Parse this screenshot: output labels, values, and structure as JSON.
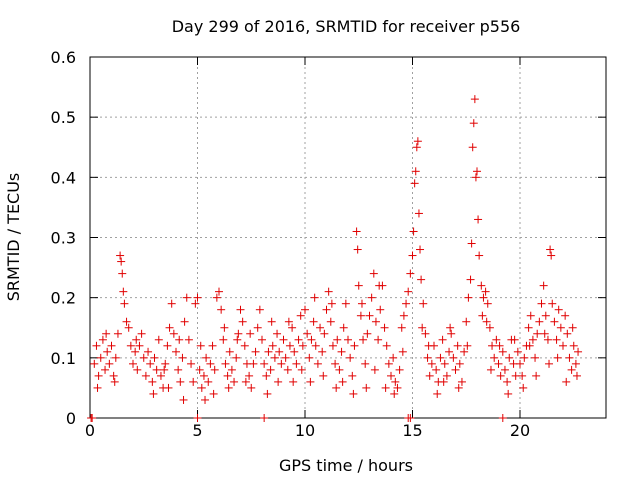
{
  "chart_data": {
    "type": "scatter",
    "title": "Day 299 of 2016, SRMTID for receiver p556",
    "xlabel": "GPS time / hours",
    "ylabel": "SRMTID / TECUs",
    "xlim": [
      0,
      24
    ],
    "ylim": [
      0,
      0.6
    ],
    "xticks": [
      {
        "value": 0,
        "label": "0"
      },
      {
        "value": 5,
        "label": "5"
      },
      {
        "value": 10,
        "label": "10"
      },
      {
        "value": 15,
        "label": "15"
      },
      {
        "value": 20,
        "label": "20"
      }
    ],
    "yticks": [
      {
        "value": 0,
        "label": "0"
      },
      {
        "value": 0.1,
        "label": "0.1"
      },
      {
        "value": 0.2,
        "label": "0.2"
      },
      {
        "value": 0.3,
        "label": "0.3"
      },
      {
        "value": 0.4,
        "label": "0.4"
      },
      {
        "value": 0.5,
        "label": "0.5"
      },
      {
        "value": 0.6,
        "label": "0.6"
      }
    ],
    "grid": true,
    "marker": "+",
    "series": [
      {
        "name": "SRMTID",
        "color": "#e00000",
        "points": [
          [
            0.05,
            0.0
          ],
          [
            0.1,
            0.0
          ],
          [
            5.0,
            0.0
          ],
          [
            8.1,
            0.0
          ],
          [
            14.8,
            0.0
          ],
          [
            14.9,
            0.0
          ],
          [
            19.2,
            0.0
          ],
          [
            0.2,
            0.09
          ],
          [
            0.3,
            0.12
          ],
          [
            0.4,
            0.07
          ],
          [
            0.5,
            0.1
          ],
          [
            0.6,
            0.13
          ],
          [
            0.7,
            0.08
          ],
          [
            0.8,
            0.11
          ],
          [
            0.9,
            0.09
          ],
          [
            1.0,
            0.12
          ],
          [
            1.1,
            0.07
          ],
          [
            1.2,
            0.1
          ],
          [
            1.3,
            0.14
          ],
          [
            1.4,
            0.27
          ],
          [
            1.45,
            0.26
          ],
          [
            1.5,
            0.24
          ],
          [
            1.55,
            0.21
          ],
          [
            1.6,
            0.19
          ],
          [
            1.7,
            0.16
          ],
          [
            1.8,
            0.15
          ],
          [
            1.9,
            0.12
          ],
          [
            2.0,
            0.09
          ],
          [
            2.1,
            0.11
          ],
          [
            2.2,
            0.08
          ],
          [
            2.3,
            0.12
          ],
          [
            2.4,
            0.14
          ],
          [
            2.5,
            0.1
          ],
          [
            2.6,
            0.07
          ],
          [
            2.7,
            0.11
          ],
          [
            2.8,
            0.09
          ],
          [
            2.9,
            0.06
          ],
          [
            3.0,
            0.1
          ],
          [
            3.1,
            0.08
          ],
          [
            3.2,
            0.13
          ],
          [
            3.3,
            0.07
          ],
          [
            3.4,
            0.05
          ],
          [
            3.5,
            0.09
          ],
          [
            3.6,
            0.12
          ],
          [
            3.7,
            0.15
          ],
          [
            3.8,
            0.19
          ],
          [
            3.9,
            0.14
          ],
          [
            4.0,
            0.11
          ],
          [
            4.1,
            0.08
          ],
          [
            4.2,
            0.06
          ],
          [
            4.3,
            0.1
          ],
          [
            4.4,
            0.16
          ],
          [
            4.5,
            0.2
          ],
          [
            4.6,
            0.13
          ],
          [
            4.7,
            0.09
          ],
          [
            4.8,
            0.06
          ],
          [
            4.9,
            0.19
          ],
          [
            5.0,
            0.2
          ],
          [
            5.1,
            0.08
          ],
          [
            5.2,
            0.05
          ],
          [
            5.3,
            0.07
          ],
          [
            5.4,
            0.1
          ],
          [
            5.5,
            0.06
          ],
          [
            5.6,
            0.09
          ],
          [
            5.7,
            0.12
          ],
          [
            5.8,
            0.08
          ],
          [
            5.9,
            0.2
          ],
          [
            6.0,
            0.21
          ],
          [
            6.1,
            0.18
          ],
          [
            6.2,
            0.13
          ],
          [
            6.3,
            0.09
          ],
          [
            6.4,
            0.07
          ],
          [
            6.5,
            0.11
          ],
          [
            6.6,
            0.08
          ],
          [
            6.7,
            0.06
          ],
          [
            6.8,
            0.1
          ],
          [
            6.9,
            0.14
          ],
          [
            7.0,
            0.18
          ],
          [
            7.1,
            0.16
          ],
          [
            7.2,
            0.12
          ],
          [
            7.3,
            0.09
          ],
          [
            7.4,
            0.07
          ],
          [
            7.5,
            0.05
          ],
          [
            7.6,
            0.09
          ],
          [
            7.7,
            0.11
          ],
          [
            7.8,
            0.15
          ],
          [
            7.9,
            0.18
          ],
          [
            8.0,
            0.13
          ],
          [
            8.1,
            0.09
          ],
          [
            8.2,
            0.07
          ],
          [
            8.3,
            0.11
          ],
          [
            8.4,
            0.08
          ],
          [
            8.5,
            0.12
          ],
          [
            8.6,
            0.1
          ],
          [
            8.7,
            0.14
          ],
          [
            8.8,
            0.11
          ],
          [
            8.9,
            0.09
          ],
          [
            9.0,
            0.13
          ],
          [
            9.1,
            0.1
          ],
          [
            9.2,
            0.08
          ],
          [
            9.3,
            0.12
          ],
          [
            9.4,
            0.15
          ],
          [
            9.5,
            0.11
          ],
          [
            9.6,
            0.09
          ],
          [
            9.7,
            0.13
          ],
          [
            9.8,
            0.17
          ],
          [
            9.9,
            0.12
          ],
          [
            10.0,
            0.18
          ],
          [
            10.1,
            0.14
          ],
          [
            10.2,
            0.1
          ],
          [
            10.3,
            0.13
          ],
          [
            10.4,
            0.16
          ],
          [
            10.5,
            0.12
          ],
          [
            10.6,
            0.09
          ],
          [
            10.7,
            0.15
          ],
          [
            10.8,
            0.11
          ],
          [
            10.9,
            0.14
          ],
          [
            11.0,
            0.18
          ],
          [
            11.1,
            0.21
          ],
          [
            11.2,
            0.16
          ],
          [
            11.3,
            0.12
          ],
          [
            11.4,
            0.09
          ],
          [
            11.5,
            0.13
          ],
          [
            11.6,
            0.08
          ],
          [
            11.7,
            0.11
          ],
          [
            11.8,
            0.15
          ],
          [
            11.9,
            0.19
          ],
          [
            12.0,
            0.13
          ],
          [
            12.1,
            0.1
          ],
          [
            12.2,
            0.07
          ],
          [
            12.3,
            0.12
          ],
          [
            12.4,
            0.31
          ],
          [
            12.45,
            0.28
          ],
          [
            12.5,
            0.22
          ],
          [
            12.6,
            0.17
          ],
          [
            12.7,
            0.13
          ],
          [
            12.8,
            0.09
          ],
          [
            12.9,
            0.14
          ],
          [
            13.0,
            0.17
          ],
          [
            13.1,
            0.2
          ],
          [
            13.2,
            0.24
          ],
          [
            13.3,
            0.16
          ],
          [
            13.4,
            0.13
          ],
          [
            13.5,
            0.18
          ],
          [
            13.6,
            0.22
          ],
          [
            13.7,
            0.15
          ],
          [
            13.8,
            0.12
          ],
          [
            13.9,
            0.09
          ],
          [
            14.0,
            0.07
          ],
          [
            14.1,
            0.1
          ],
          [
            14.2,
            0.06
          ],
          [
            14.3,
            0.05
          ],
          [
            14.4,
            0.08
          ],
          [
            14.5,
            0.15
          ],
          [
            14.6,
            0.17
          ],
          [
            14.7,
            0.19
          ],
          [
            14.8,
            0.21
          ],
          [
            14.9,
            0.24
          ],
          [
            15.0,
            0.27
          ],
          [
            15.05,
            0.31
          ],
          [
            15.1,
            0.39
          ],
          [
            15.15,
            0.41
          ],
          [
            15.2,
            0.45
          ],
          [
            15.25,
            0.46
          ],
          [
            15.3,
            0.34
          ],
          [
            15.35,
            0.28
          ],
          [
            15.4,
            0.23
          ],
          [
            15.5,
            0.19
          ],
          [
            15.6,
            0.14
          ],
          [
            15.7,
            0.1
          ],
          [
            15.8,
            0.07
          ],
          [
            15.9,
            0.09
          ],
          [
            16.0,
            0.12
          ],
          [
            16.1,
            0.08
          ],
          [
            16.2,
            0.06
          ],
          [
            16.3,
            0.1
          ],
          [
            16.4,
            0.13
          ],
          [
            16.5,
            0.09
          ],
          [
            16.6,
            0.07
          ],
          [
            16.7,
            0.11
          ],
          [
            16.8,
            0.14
          ],
          [
            16.9,
            0.1
          ],
          [
            17.0,
            0.08
          ],
          [
            17.1,
            0.12
          ],
          [
            17.2,
            0.09
          ],
          [
            17.3,
            0.06
          ],
          [
            17.4,
            0.11
          ],
          [
            17.5,
            0.16
          ],
          [
            17.6,
            0.2
          ],
          [
            17.7,
            0.23
          ],
          [
            17.75,
            0.29
          ],
          [
            17.8,
            0.45
          ],
          [
            17.85,
            0.49
          ],
          [
            17.9,
            0.53
          ],
          [
            17.95,
            0.4
          ],
          [
            18.0,
            0.41
          ],
          [
            18.05,
            0.33
          ],
          [
            18.1,
            0.27
          ],
          [
            18.2,
            0.22
          ],
          [
            18.3,
            0.2
          ],
          [
            18.4,
            0.21
          ],
          [
            18.5,
            0.19
          ],
          [
            18.6,
            0.15
          ],
          [
            18.7,
            0.12
          ],
          [
            18.8,
            0.1
          ],
          [
            18.9,
            0.13
          ],
          [
            19.0,
            0.09
          ],
          [
            19.1,
            0.07
          ],
          [
            19.2,
            0.11
          ],
          [
            19.3,
            0.08
          ],
          [
            19.4,
            0.06
          ],
          [
            19.5,
            0.1
          ],
          [
            19.6,
            0.13
          ],
          [
            19.7,
            0.09
          ],
          [
            19.8,
            0.07
          ],
          [
            19.9,
            0.11
          ],
          [
            20.0,
            0.09
          ],
          [
            20.1,
            0.07
          ],
          [
            20.2,
            0.1
          ],
          [
            20.3,
            0.12
          ],
          [
            20.4,
            0.15
          ],
          [
            20.5,
            0.17
          ],
          [
            20.6,
            0.13
          ],
          [
            20.7,
            0.1
          ],
          [
            20.8,
            0.14
          ],
          [
            20.9,
            0.16
          ],
          [
            21.0,
            0.19
          ],
          [
            21.1,
            0.22
          ],
          [
            21.2,
            0.17
          ],
          [
            21.3,
            0.13
          ],
          [
            21.4,
            0.28
          ],
          [
            21.45,
            0.27
          ],
          [
            21.5,
            0.19
          ],
          [
            21.6,
            0.16
          ],
          [
            21.7,
            0.13
          ],
          [
            21.8,
            0.18
          ],
          [
            21.9,
            0.15
          ],
          [
            22.0,
            0.12
          ],
          [
            22.1,
            0.17
          ],
          [
            22.2,
            0.14
          ],
          [
            22.3,
            0.1
          ],
          [
            22.4,
            0.08
          ],
          [
            22.5,
            0.12
          ],
          [
            22.6,
            0.09
          ],
          [
            22.7,
            0.11
          ],
          [
            0.35,
            0.05
          ],
          [
            0.75,
            0.14
          ],
          [
            1.15,
            0.06
          ],
          [
            2.15,
            0.13
          ],
          [
            2.95,
            0.04
          ],
          [
            3.45,
            0.08
          ],
          [
            3.65,
            0.05
          ],
          [
            4.15,
            0.13
          ],
          [
            4.35,
            0.03
          ],
          [
            5.15,
            0.12
          ],
          [
            5.35,
            0.03
          ],
          [
            5.75,
            0.04
          ],
          [
            6.25,
            0.15
          ],
          [
            6.45,
            0.05
          ],
          [
            6.85,
            0.13
          ],
          [
            7.25,
            0.06
          ],
          [
            7.45,
            0.14
          ],
          [
            8.25,
            0.04
          ],
          [
            8.45,
            0.16
          ],
          [
            8.75,
            0.06
          ],
          [
            9.25,
            0.16
          ],
          [
            9.45,
            0.06
          ],
          [
            9.85,
            0.08
          ],
          [
            10.25,
            0.06
          ],
          [
            10.45,
            0.2
          ],
          [
            10.85,
            0.07
          ],
          [
            11.25,
            0.19
          ],
          [
            11.45,
            0.05
          ],
          [
            11.75,
            0.06
          ],
          [
            12.25,
            0.04
          ],
          [
            12.65,
            0.19
          ],
          [
            12.85,
            0.05
          ],
          [
            13.25,
            0.08
          ],
          [
            13.45,
            0.22
          ],
          [
            13.75,
            0.05
          ],
          [
            14.15,
            0.04
          ],
          [
            14.55,
            0.11
          ],
          [
            15.45,
            0.15
          ],
          [
            15.75,
            0.12
          ],
          [
            16.15,
            0.04
          ],
          [
            16.45,
            0.06
          ],
          [
            16.75,
            0.15
          ],
          [
            17.15,
            0.05
          ],
          [
            17.55,
            0.12
          ],
          [
            18.25,
            0.17
          ],
          [
            18.45,
            0.16
          ],
          [
            18.65,
            0.08
          ],
          [
            19.05,
            0.12
          ],
          [
            19.45,
            0.04
          ],
          [
            19.75,
            0.13
          ],
          [
            20.15,
            0.05
          ],
          [
            20.45,
            0.12
          ],
          [
            20.75,
            0.07
          ],
          [
            21.15,
            0.14
          ],
          [
            21.35,
            0.09
          ],
          [
            21.75,
            0.1
          ],
          [
            22.15,
            0.06
          ],
          [
            22.45,
            0.15
          ],
          [
            22.65,
            0.07
          ]
        ]
      }
    ]
  }
}
